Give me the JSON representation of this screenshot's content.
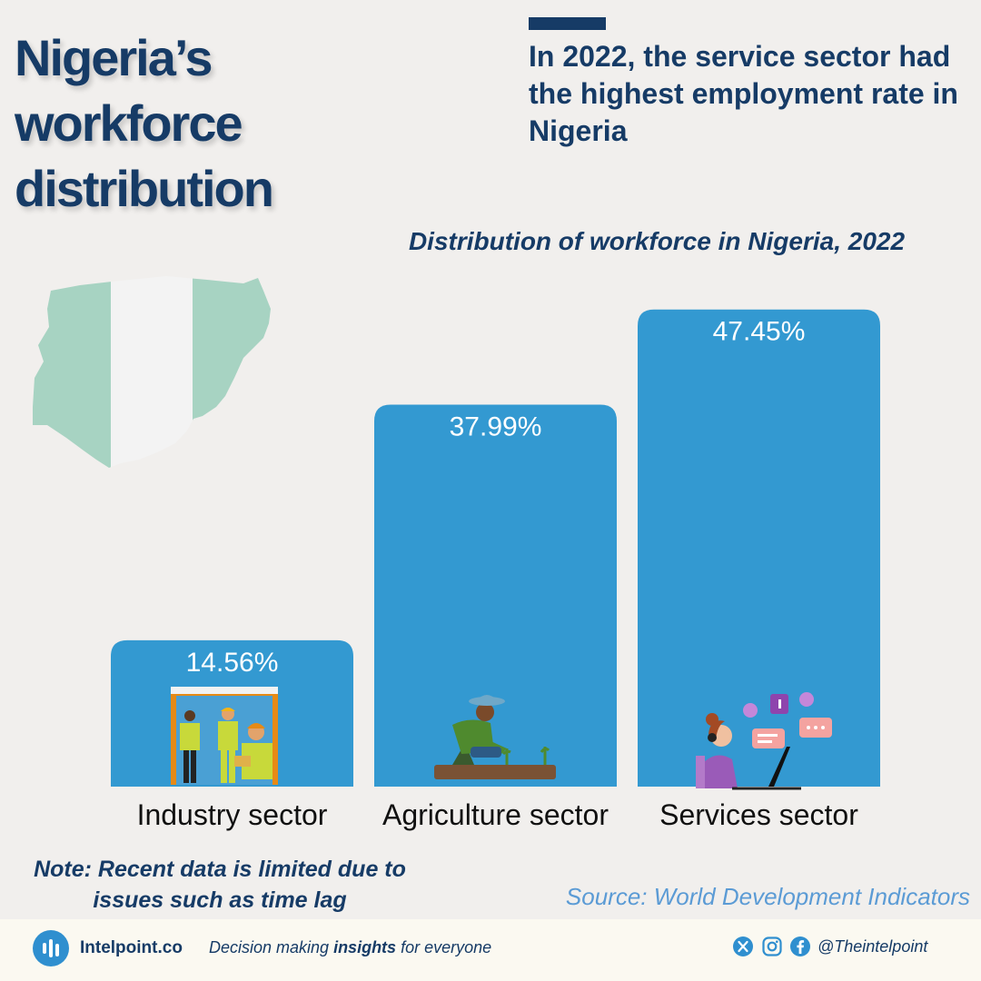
{
  "title": {
    "line1": "Nigeria’s",
    "line2": "workforce",
    "line3": "distribution"
  },
  "headline": "In 2022, the service sector had the highest employment rate in Nigeria",
  "note": "Note: Recent data is limited due to issues such as time lag",
  "source": "Source: World Development Indicators",
  "colors": {
    "bar": "#3399d1",
    "title": "#163b66",
    "background": "#f1efed",
    "map_green": "#a7d3c2",
    "map_white": "#f3f3f3",
    "source": "#5b9bd5"
  },
  "chart_data": {
    "type": "bar",
    "title": "Distribution of workforce in Nigeria, 2022",
    "categories": [
      "Industry sector",
      "Agriculture sector",
      "Services sector"
    ],
    "values": [
      14.56,
      37.99,
      47.45
    ],
    "value_labels": [
      "14.56%",
      "37.99%",
      "47.45%"
    ],
    "icons": [
      "construction-workers-icon",
      "farmer-planting-icon",
      "customer-service-agent-icon"
    ],
    "xlabel": "",
    "ylabel": "",
    "unit": "%",
    "grid": false,
    "legend": "none"
  },
  "footer": {
    "brand": "Intelpoint.co",
    "tagline_pre": "Decision making ",
    "tagline_bold": "insights",
    "tagline_post": " for everyone",
    "handle": "@Theintelpoint",
    "social_icons": [
      "x-icon",
      "instagram-icon",
      "facebook-icon"
    ]
  }
}
